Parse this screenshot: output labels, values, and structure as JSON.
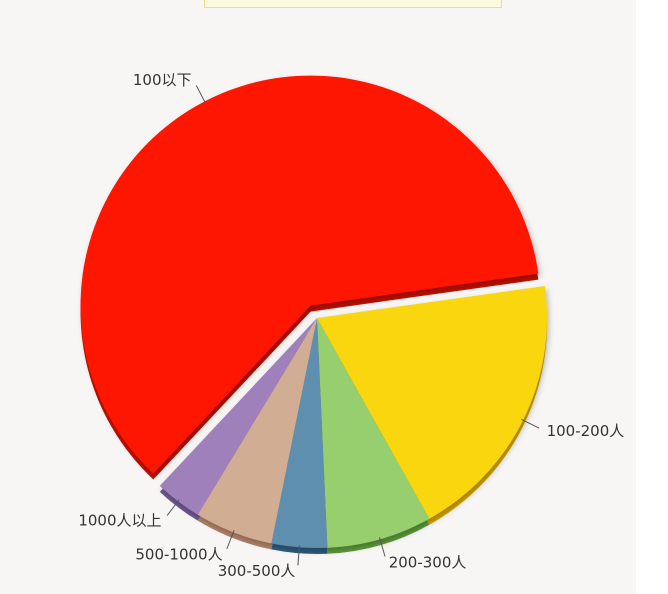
{
  "chart_data": {
    "type": "pie",
    "title": "",
    "slices": [
      {
        "label": "100以下",
        "value": 60.8,
        "color": "#fe1400",
        "side": "#c20f00"
      },
      {
        "label": "100-200人",
        "value": 19.1,
        "color": "#f9d60b",
        "side": "#d8a800"
      },
      {
        "label": "200-300人",
        "value": 7.4,
        "color": "#97cf6e",
        "side": "#5f9a3c"
      },
      {
        "label": "300-500人",
        "value": 3.9,
        "color": "#5f8fae",
        "side": "#2d5c7c"
      },
      {
        "label": "500-1000人",
        "value": 5.5,
        "color": "#d1ad93",
        "side": "#b08168"
      },
      {
        "label": "1000人以上",
        "value": 3.3,
        "color": "#9f80ba",
        "side": "#6d5690"
      }
    ]
  }
}
